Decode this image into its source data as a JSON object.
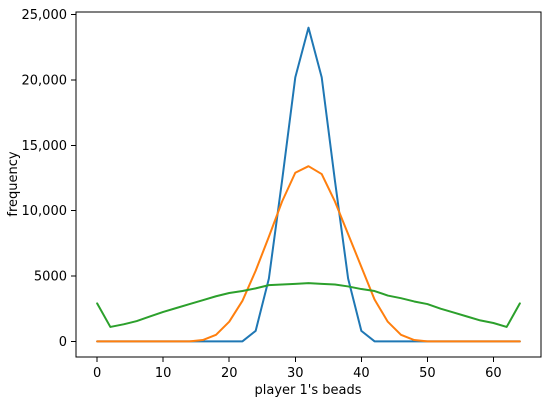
{
  "chart_data": {
    "type": "line",
    "title": "",
    "xlabel": "player 1's beads",
    "ylabel": "frequency",
    "xlim": [
      -3.2,
      67.2
    ],
    "ylim": [
      -1200,
      25200
    ],
    "x_ticks": [
      0,
      10,
      20,
      30,
      40,
      50,
      60
    ],
    "y_ticks": [
      0,
      5000,
      10000,
      15000,
      20000,
      25000
    ],
    "x_tick_labels": [
      "0",
      "10",
      "20",
      "30",
      "40",
      "50",
      "60"
    ],
    "y_tick_labels": [
      "0",
      "5000",
      "10,000",
      "15,000",
      "20,000",
      "25,000"
    ],
    "grid": false,
    "legend": "none",
    "x": [
      0,
      2,
      4,
      6,
      8,
      10,
      12,
      14,
      16,
      18,
      20,
      22,
      24,
      26,
      28,
      30,
      32,
      34,
      36,
      38,
      40,
      42,
      44,
      46,
      48,
      50,
      52,
      54,
      56,
      58,
      60,
      62,
      64
    ],
    "series": [
      {
        "color": "#1f77b4",
        "values": [
          0,
          0,
          0,
          0,
          0,
          0,
          0,
          0,
          0,
          0,
          0,
          0,
          800,
          4800,
          12300,
          20200,
          24000,
          20200,
          12300,
          4800,
          800,
          0,
          0,
          0,
          0,
          0,
          0,
          0,
          0,
          0,
          0,
          0,
          0
        ]
      },
      {
        "color": "#ff7f0e",
        "values": [
          0,
          0,
          0,
          0,
          0,
          0,
          0,
          0,
          100,
          500,
          1500,
          3100,
          5400,
          8000,
          10700,
          12900,
          13400,
          12800,
          10700,
          8200,
          5700,
          3200,
          1500,
          500,
          100,
          0,
          0,
          0,
          0,
          0,
          0,
          0,
          0
        ]
      },
      {
        "color": "#2ca02c",
        "values": [
          2900,
          1100,
          1300,
          1550,
          1900,
          2250,
          2550,
          2850,
          3150,
          3450,
          3700,
          3850,
          4050,
          4300,
          4350,
          4400,
          4450,
          4400,
          4350,
          4200,
          4000,
          3850,
          3500,
          3300,
          3050,
          2850,
          2500,
          2200,
          1900,
          1600,
          1400,
          1100,
          2900
        ]
      }
    ]
  }
}
